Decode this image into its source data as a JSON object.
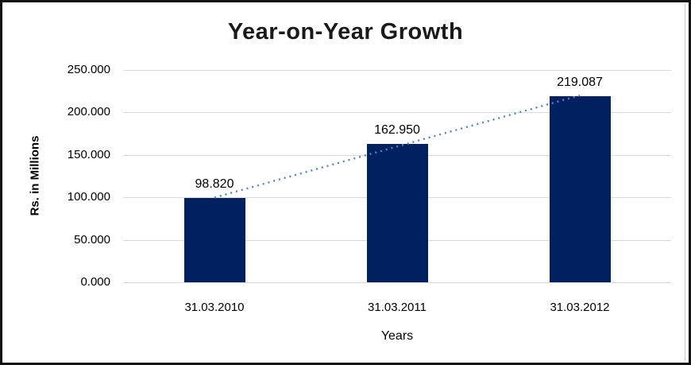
{
  "chart_data": {
    "type": "bar",
    "title": "Year-on-Year Growth",
    "categories": [
      "31.03.2010",
      "31.03.2011",
      "31.03.2012"
    ],
    "values": [
      98.82,
      162.95,
      219.087
    ],
    "value_labels": [
      "98.820",
      "162.950",
      "219.087"
    ],
    "xlabel": "Years",
    "ylabel": "Rs. in Millions",
    "ylim": [
      0,
      250
    ],
    "y_ticks": [
      {
        "value": 0,
        "label": "0.000"
      },
      {
        "value": 50,
        "label": "50.000"
      },
      {
        "value": 100,
        "label": "100.000"
      },
      {
        "value": 150,
        "label": "150.000"
      },
      {
        "value": 200,
        "label": "200.000"
      },
      {
        "value": 250,
        "label": "250.000"
      }
    ],
    "grid": true,
    "legend": "none",
    "colors": {
      "bar": "#002060",
      "gridline": "#d9d9d9",
      "trendline": "#4f86c6",
      "text": "#000000",
      "frame": "#111111"
    },
    "trendline": {
      "style": "dotted",
      "from_category": "31.03.2010",
      "to_category": "31.03.2012"
    }
  }
}
